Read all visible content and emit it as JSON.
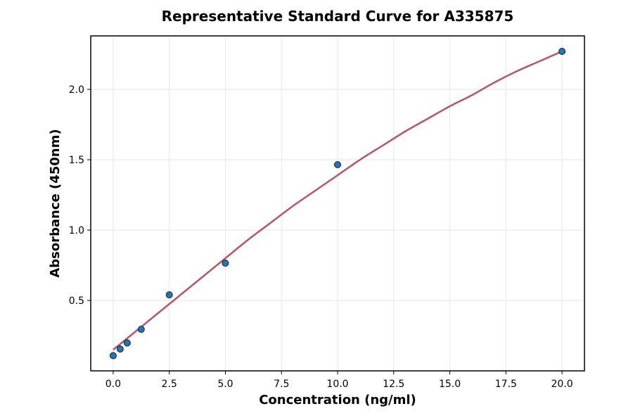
{
  "chart_data": {
    "type": "scatter",
    "title": "Representative Standard Curve for A335875",
    "xlabel": "Concentration (ng/ml)",
    "ylabel": "Absorbance (450nm)",
    "xlim": [
      -1.0,
      21.0
    ],
    "ylim": [
      0.0,
      2.38
    ],
    "xticks": [
      0.0,
      2.5,
      5.0,
      7.5,
      10.0,
      12.5,
      15.0,
      17.5,
      20.0
    ],
    "xtick_labels": [
      "0.0",
      "2.5",
      "5.0",
      "7.5",
      "10.0",
      "12.5",
      "15.0",
      "17.5",
      "20.0"
    ],
    "yticks": [
      0.5,
      1.0,
      1.5,
      2.0
    ],
    "ytick_labels": [
      "0.5",
      "1.0",
      "1.5",
      "2.0"
    ],
    "grid": true,
    "series": [
      {
        "kind": "points",
        "x": [
          0.0,
          0.3125,
          0.625,
          1.25,
          2.5,
          5.0,
          10.0,
          20.0
        ],
        "y": [
          0.108,
          0.155,
          0.198,
          0.295,
          0.54,
          0.765,
          1.465,
          2.27
        ],
        "color": "#1f77b4"
      },
      {
        "kind": "fit-line",
        "x": [
          0.0,
          1.0,
          2.0,
          3.0,
          4.0,
          5.0,
          6.0,
          7.0,
          8.0,
          9.0,
          10.0,
          11.0,
          12.0,
          13.0,
          14.0,
          15.0,
          16.0,
          17.0,
          18.0,
          19.0,
          20.0
        ],
        "y": [
          0.15,
          0.28,
          0.41,
          0.54,
          0.67,
          0.8,
          0.93,
          1.05,
          1.17,
          1.28,
          1.39,
          1.5,
          1.6,
          1.7,
          1.79,
          1.88,
          1.96,
          2.05,
          2.13,
          2.2,
          2.27
        ],
        "color": "#b5556a"
      }
    ]
  }
}
